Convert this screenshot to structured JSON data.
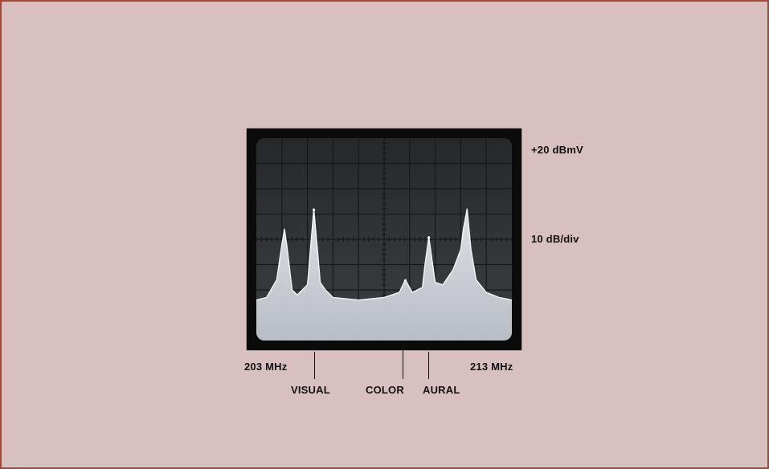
{
  "chart_data": {
    "type": "line",
    "title": "",
    "x_range_labels": {
      "start": "203 MHz",
      "end": "213 MHz"
    },
    "x_unit": "MHz",
    "xlim": [
      203,
      213
    ],
    "reference_level": "+20 dBmV",
    "scale": "10 dB/div",
    "ylim_db_down": [
      0,
      80
    ],
    "grid": true,
    "divisions": {
      "x": 10,
      "y": 8
    },
    "trace": {
      "x": [
        203.0,
        203.4,
        203.8,
        204.0,
        204.1,
        204.2,
        204.4,
        204.6,
        205.0,
        205.1,
        205.25,
        205.4,
        205.5,
        205.7,
        206.0,
        207.0,
        208.0,
        208.6,
        208.83,
        209.1,
        209.5,
        209.6,
        209.75,
        209.9,
        210.0,
        210.3,
        210.7,
        211.0,
        211.1,
        211.25,
        211.4,
        211.6,
        212.0,
        212.5,
        213.0
      ],
      "y_db_down": [
        64,
        63,
        56,
        42,
        36,
        43,
        60,
        62,
        58,
        46,
        28,
        45,
        57,
        60,
        63,
        64,
        63,
        61,
        56,
        61,
        59,
        50,
        39,
        50,
        57,
        58,
        52,
        44,
        36,
        28,
        44,
        56,
        61,
        63,
        64
      ]
    },
    "carriers": [
      {
        "label": "VISUAL",
        "freq_mhz": 205.25,
        "db_down": 28
      },
      {
        "label": "COLOR",
        "freq_mhz": 208.83,
        "db_down": 56
      },
      {
        "label": "AURAL",
        "freq_mhz": 209.75,
        "db_down": 39
      }
    ]
  },
  "labels": {
    "ref": "+20 dBmV",
    "scale": "10 dB/div",
    "start": "203 MHz",
    "end": "213 MHz",
    "visual": "VISUAL",
    "color": "COLOR",
    "aural": "AURAL"
  },
  "colors": {
    "background": "#d9c0c0",
    "border": "#9b4a3c",
    "screen": "#2b2c2f",
    "trace": "#c9cdd3",
    "grid": "#17181a"
  }
}
